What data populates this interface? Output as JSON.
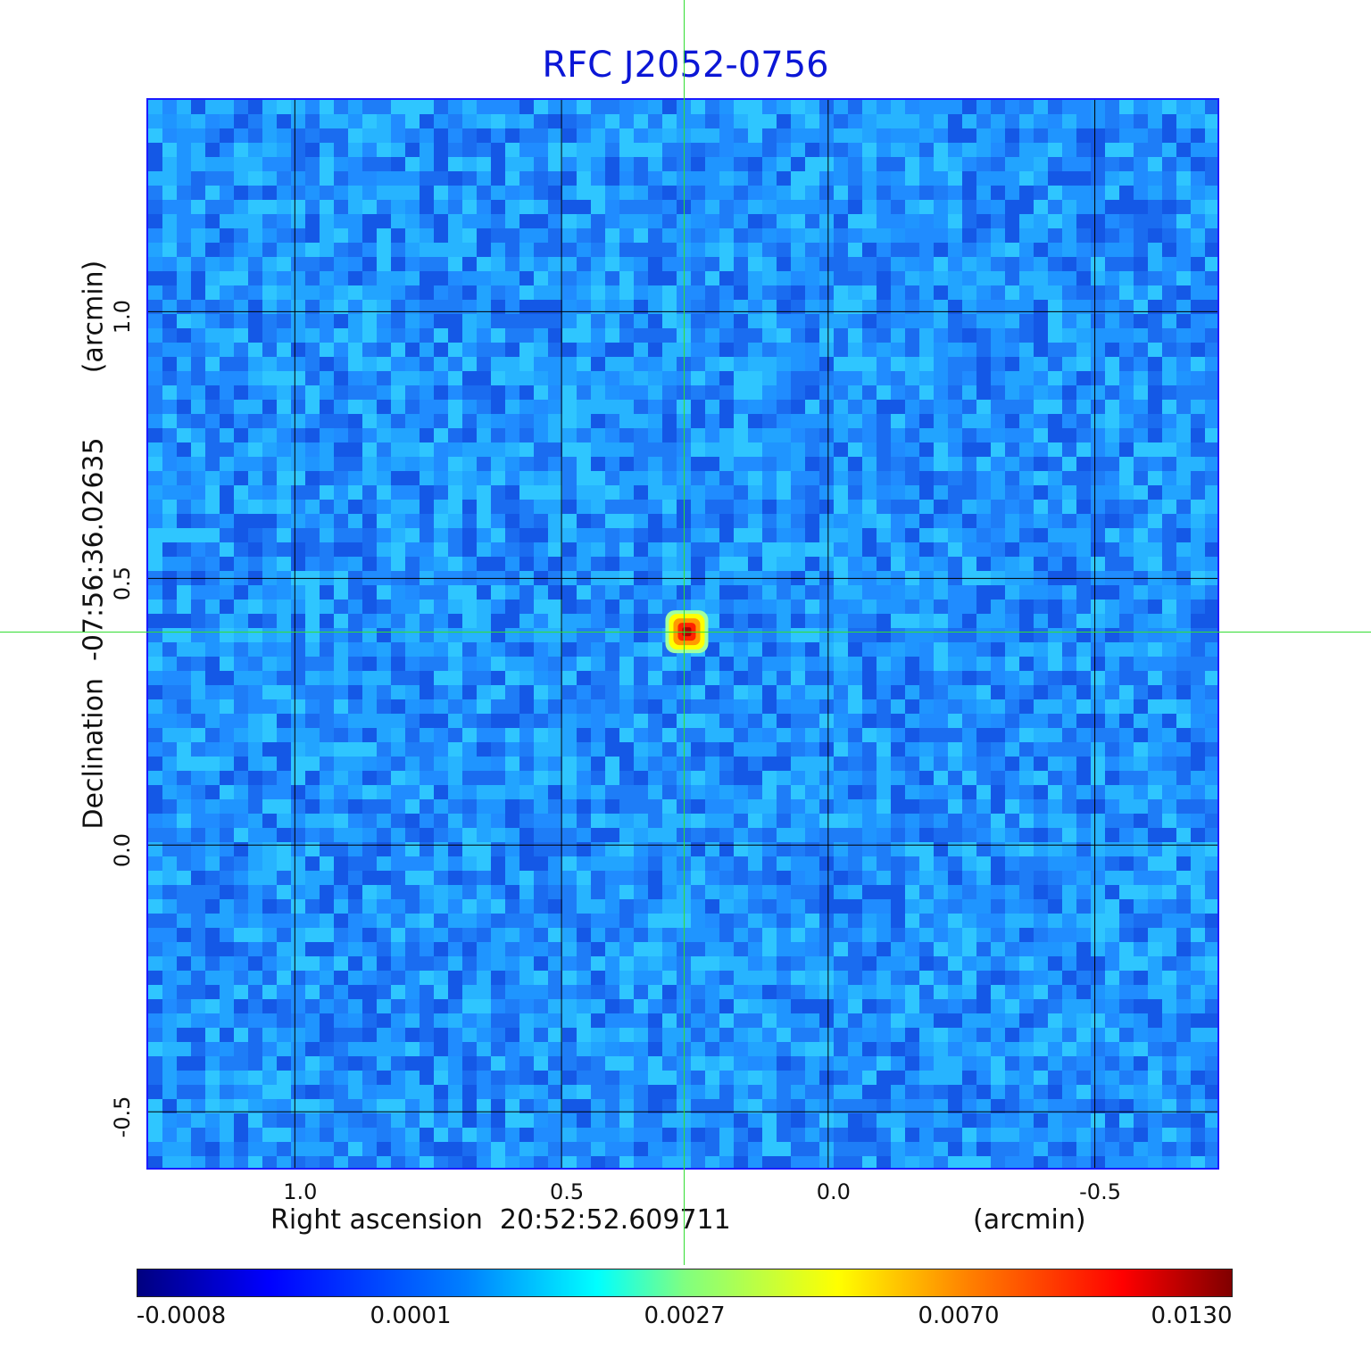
{
  "chart_data": {
    "type": "heatmap",
    "title": "RFC J2052-0756",
    "xlabel": "Right ascension  20:52:52.609711",
    "xunit": "(arcmin)",
    "ylabel": "Declination  -07:56:36.02635",
    "yunit": "(arcmin)",
    "xlim": [
      1.275,
      -0.73
    ],
    "ylim": [
      -0.605,
      1.397
    ],
    "x_ticks": [
      "1.0",
      "0.5",
      "0.0",
      "-0.5"
    ],
    "x_tick_values": [
      1.0,
      0.5,
      0.0,
      -0.5
    ],
    "y_ticks": [
      "-0.5",
      "0.0",
      "0.5",
      "1.0"
    ],
    "y_tick_values": [
      -0.5,
      0.0,
      0.5,
      1.0
    ],
    "grid": true,
    "crosshair": {
      "x": 0.265,
      "y": 0.4
    },
    "sources": [
      {
        "x": 0.265,
        "y": 0.4,
        "peak": 0.013
      }
    ],
    "colorbar": {
      "ticks": [
        "-0.0008",
        "0.0001",
        "0.0027",
        "0.0070",
        "0.0130"
      ],
      "colormap": "jet"
    }
  }
}
